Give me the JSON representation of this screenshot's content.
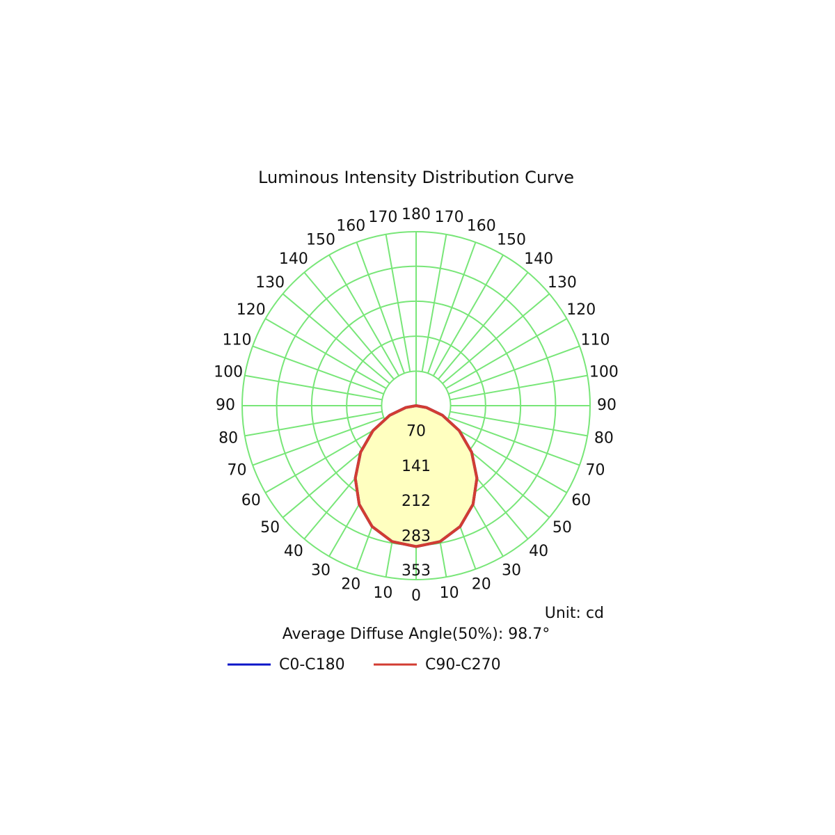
{
  "chart_data": {
    "type": "polar",
    "title": "Luminous Intensity Distribution Curve",
    "unit": "Unit: cd",
    "annotation": "Average Diffuse Angle(50%): 98.7°",
    "angles": [
      -90,
      -80,
      -70,
      -60,
      -50,
      -40,
      -30,
      -20,
      -10,
      0,
      10,
      20,
      30,
      40,
      50,
      60,
      70,
      80,
      90
    ],
    "series": [
      {
        "name": "C0-C180",
        "color": "#0a14c8",
        "values": [
          0,
          21,
          57,
          101,
          147,
          192,
          231,
          261,
          280,
          286,
          280,
          261,
          231,
          192,
          147,
          101,
          57,
          21,
          0
        ]
      },
      {
        "name": "C90-C270",
        "color": "#d23c32",
        "values": [
          0,
          21,
          57,
          101,
          147,
          192,
          231,
          261,
          280,
          286,
          280,
          261,
          231,
          192,
          147,
          101,
          57,
          21,
          0
        ]
      }
    ],
    "fill_color": "#ffffc0",
    "grid_color": "#78e678",
    "ylim": [
      0,
      353
    ],
    "yticks": [
      70,
      141,
      212,
      283,
      353
    ],
    "angle_ticks": [
      0,
      10,
      20,
      30,
      40,
      50,
      60,
      70,
      80,
      90,
      100,
      110,
      120,
      130,
      140,
      150,
      160,
      170,
      180
    ]
  }
}
